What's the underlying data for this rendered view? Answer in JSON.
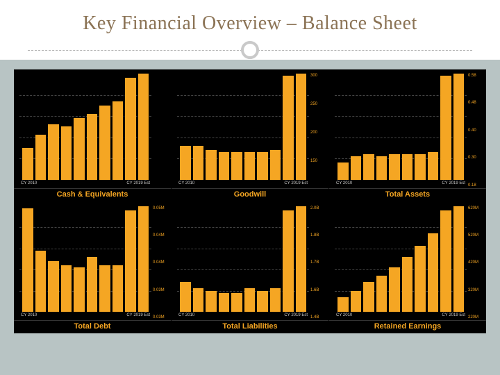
{
  "slide": {
    "title": "Key Financial Overview – Balance Sheet",
    "title_color": "#8b7355",
    "title_fontsize": 28,
    "divider_dash_color": "#b0b0b0",
    "divider_circle_color": "#c9c9c9",
    "content_bg": "#b8c4c4"
  },
  "grid": {
    "cols": 3,
    "rows": 2,
    "background": "#000000",
    "bar_color": "#f5a623",
    "label_color": "#f5a623",
    "xaxis_left": "CY 2010",
    "xaxis_right": "CY 2019 Est",
    "axis_color": "#cccccc",
    "grid_line_color": "#444444"
  },
  "charts": [
    {
      "title": "Cash & Equivalents",
      "type": "bar",
      "values": [
        30,
        42,
        52,
        50,
        58,
        62,
        70,
        74,
        96,
        100
      ],
      "ymax": 100,
      "yticks": [
        "",
        "",
        "",
        "",
        ""
      ]
    },
    {
      "title": "Goodwill",
      "type": "bar",
      "values": [
        32,
        32,
        28,
        26,
        26,
        26,
        26,
        28,
        98,
        100
      ],
      "ymax": 100,
      "yticks": [
        "300",
        "250",
        "200",
        "150",
        ""
      ]
    },
    {
      "title": "Total Assets",
      "type": "bar",
      "values": [
        16,
        22,
        24,
        22,
        24,
        24,
        24,
        26,
        98,
        100
      ],
      "ymax": 100,
      "yticks": [
        "0.58",
        "0.48",
        "0.40",
        "0.30",
        "0.18"
      ]
    },
    {
      "title": "Total Debt",
      "type": "bar",
      "values": [
        98,
        58,
        48,
        44,
        42,
        52,
        44,
        44,
        96,
        100
      ],
      "ymax": 100,
      "yticks": [
        "0.05M",
        "0.04M",
        "0.04M",
        "0.03M",
        "0.03M"
      ]
    },
    {
      "title": "Total Liabilities",
      "type": "bar",
      "values": [
        28,
        22,
        20,
        18,
        18,
        22,
        20,
        22,
        96,
        100
      ],
      "ymax": 100,
      "yticks": [
        "2.0B",
        "1.8B",
        "1.7B",
        "1.6B",
        "1.4B"
      ]
    },
    {
      "title": "Retained Earnings",
      "type": "bar",
      "values": [
        14,
        20,
        28,
        34,
        42,
        52,
        62,
        74,
        96,
        100
      ],
      "ymax": 100,
      "yticks": [
        "620M",
        "520M",
        "420M",
        "320M",
        "220M"
      ]
    }
  ]
}
